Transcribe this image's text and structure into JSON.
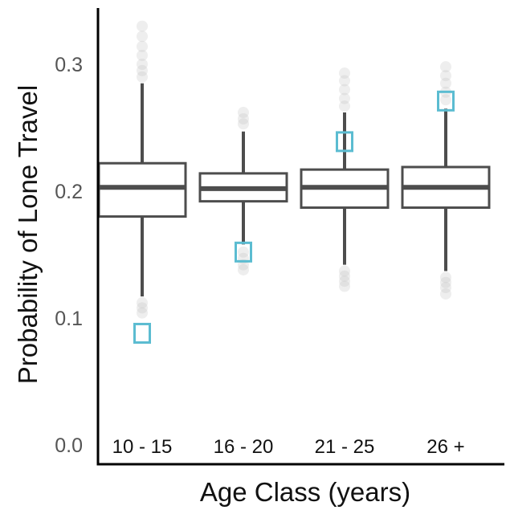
{
  "chart_data": {
    "type": "boxplot",
    "title": "",
    "xlabel": "Age Class (years)",
    "ylabel": "Probability of Lone Travel",
    "ylim": [
      0.0,
      0.34
    ],
    "yticks": [
      0.0,
      0.1,
      0.2,
      0.3
    ],
    "ytick_labels": [
      "0.0",
      "0.1",
      "0.2",
      "0.3"
    ],
    "categories": [
      "10 - 15",
      "16 - 20",
      "21 - 25",
      "26 +"
    ],
    "boxes": [
      {
        "category": "10 - 15",
        "whisker_low": 0.117,
        "q1": 0.18,
        "median": 0.203,
        "q3": 0.222,
        "whisker_high": 0.285,
        "outliers": [
          0.112,
          0.108,
          0.104,
          0.29,
          0.295,
          0.3,
          0.307,
          0.314,
          0.322,
          0.33
        ]
      },
      {
        "category": "16 - 20",
        "whisker_low": 0.158,
        "q1": 0.192,
        "median": 0.202,
        "q3": 0.214,
        "whisker_high": 0.247,
        "outliers": [
          0.152,
          0.147,
          0.142,
          0.138,
          0.253,
          0.257,
          0.262
        ]
      },
      {
        "category": "21 - 25",
        "whisker_low": 0.142,
        "q1": 0.187,
        "median": 0.203,
        "q3": 0.217,
        "whisker_high": 0.262,
        "outliers": [
          0.137,
          0.133,
          0.129,
          0.125,
          0.267,
          0.273,
          0.28,
          0.287,
          0.293
        ]
      },
      {
        "category": "26 +",
        "whisker_low": 0.137,
        "q1": 0.187,
        "median": 0.203,
        "q3": 0.219,
        "whisker_high": 0.265,
        "outliers": [
          0.132,
          0.128,
          0.124,
          0.119,
          0.272,
          0.278,
          0.285,
          0.291,
          0.298
        ]
      }
    ],
    "observed_markers": [
      {
        "category": "10 - 15",
        "value": 0.088
      },
      {
        "category": "16 - 20",
        "value": 0.152
      },
      {
        "category": "21 - 25",
        "value": 0.239
      },
      {
        "category": "26 +",
        "value": 0.271
      }
    ],
    "colors": {
      "box": "#4d4d4d",
      "observed": "#5bbcd1",
      "outlier": "#bbbbbb"
    },
    "grid": false,
    "legend": "none"
  }
}
